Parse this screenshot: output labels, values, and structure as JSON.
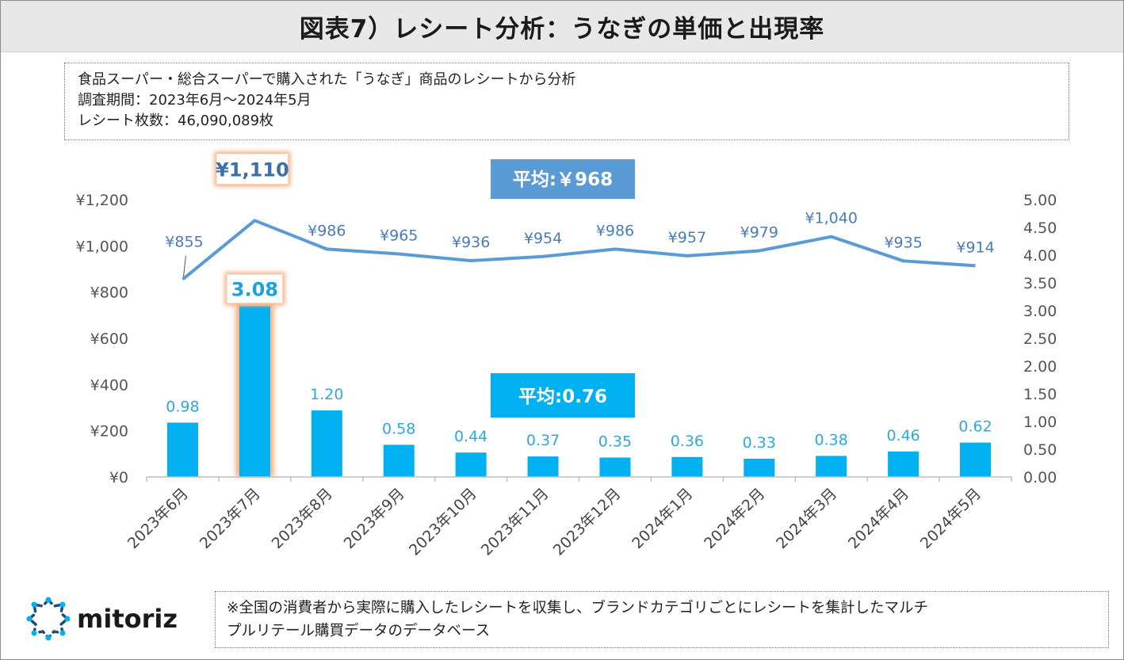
{
  "title": "図表7）レシート分析：うなぎの単価と出現率",
  "info": {
    "line1": "食品スーパー・総合スーパーで購入された「うなぎ」商品のレシートから分析",
    "line2": "調査期間：2023年6月～2024年5月",
    "line3": "レシート枚数：46,090,089枚"
  },
  "chart_data": {
    "type": "bar+line",
    "categories": [
      "2023年6月",
      "2023年7月",
      "2023年8月",
      "2023年9月",
      "2023年10月",
      "2023年11月",
      "2023年12月",
      "2024年1月",
      "2024年2月",
      "2024年3月",
      "2024年4月",
      "2024年5月"
    ],
    "series": [
      {
        "name": "単価",
        "type": "line",
        "axis": "left",
        "values": [
          855,
          1110,
          986,
          965,
          936,
          954,
          986,
          957,
          979,
          1040,
          935,
          914
        ],
        "labels": [
          "¥855",
          "¥1,110",
          "¥986",
          "¥965",
          "¥936",
          "¥954",
          "¥986",
          "¥957",
          "¥979",
          "¥1,040",
          "¥935",
          "¥914"
        ]
      },
      {
        "name": "出現率",
        "type": "bar",
        "axis": "right",
        "values": [
          0.98,
          3.08,
          1.2,
          0.58,
          0.44,
          0.37,
          0.35,
          0.36,
          0.33,
          0.38,
          0.46,
          0.62
        ],
        "labels": [
          "0.98",
          "3.08",
          "1.20",
          "0.58",
          "0.44",
          "0.37",
          "0.35",
          "0.36",
          "0.33",
          "0.38",
          "0.46",
          "0.62"
        ]
      }
    ],
    "left_axis": {
      "min": 0,
      "max": 1200,
      "ticks": [
        "¥0",
        "¥200",
        "¥400",
        "¥600",
        "¥800",
        "¥1,000",
        "¥1,200"
      ]
    },
    "right_axis": {
      "min": 0,
      "max": 5,
      "ticks": [
        "0.00",
        "0.50",
        "1.00",
        "1.50",
        "2.00",
        "2.50",
        "3.00",
        "3.50",
        "4.00",
        "4.50",
        "5.00"
      ]
    },
    "annotations": {
      "line_average": "平均:￥968",
      "bar_average": "平均:0.76"
    },
    "highlight_index": 1,
    "colors": {
      "line": "#5b9bd5",
      "bar": "#00b0f0",
      "label_line": "#4a7cb8",
      "label_bar": "#2fa8dc",
      "avg_line_box": "#5b9bd5",
      "avg_bar_box": "#00b0f0",
      "highlight": "#f4b183"
    }
  },
  "logo": {
    "text": "mitoriz"
  },
  "footnote": {
    "line1": "※全国の消費者から実際に購入したレシートを収集し、ブランドカテゴリごとにレシートを集計したマルチ",
    "line2": "プルリテール購買データのデータベース"
  }
}
